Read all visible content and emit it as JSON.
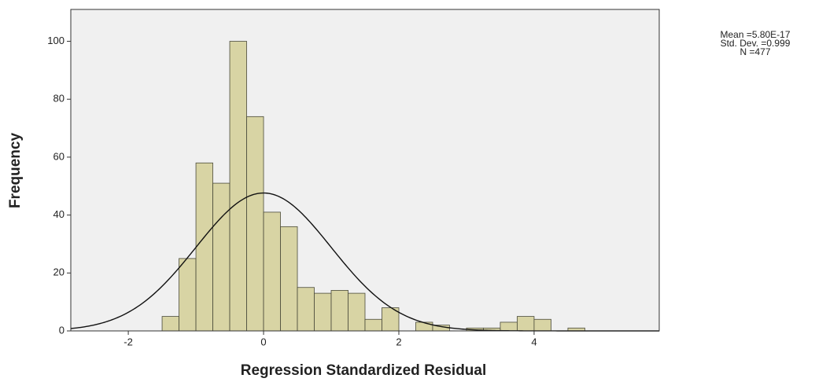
{
  "chart_data": {
    "type": "histogram",
    "xlabel": "Regression Standardized Residual",
    "ylabel": "Frequency",
    "bins": [
      -1.5,
      -1.25,
      -1.0,
      -0.75,
      -0.5,
      -0.25,
      0.0,
      0.25,
      0.5,
      0.75,
      1.0,
      1.25,
      1.5,
      1.75,
      2.0,
      2.25,
      2.5,
      2.75,
      3.0,
      3.25,
      3.5,
      3.75,
      4.0,
      4.25,
      4.5,
      4.75
    ],
    "values": [
      5,
      25,
      58,
      51,
      100,
      74,
      41,
      36,
      15,
      13,
      14,
      13,
      4,
      8,
      0,
      3,
      2,
      0,
      1,
      1,
      3,
      5,
      4,
      0,
      1
    ],
    "color": "#d8d4a4",
    "edge_color": "#4a4a3a",
    "plot_background": "#f0f0f0",
    "xlim": [
      -2.85,
      5.85
    ],
    "ylim": [
      0,
      111
    ],
    "xticks": [
      -2,
      0,
      2,
      4
    ],
    "yticks": [
      0,
      20,
      40,
      60,
      80,
      100
    ],
    "stats": [
      {
        "label": "Mean =5.80E-17",
        "value": 5.8e-17
      },
      {
        "label": "Std. Dev. =0.999",
        "value": 0.999
      },
      {
        "label": "N =477",
        "value": 477
      }
    ]
  }
}
